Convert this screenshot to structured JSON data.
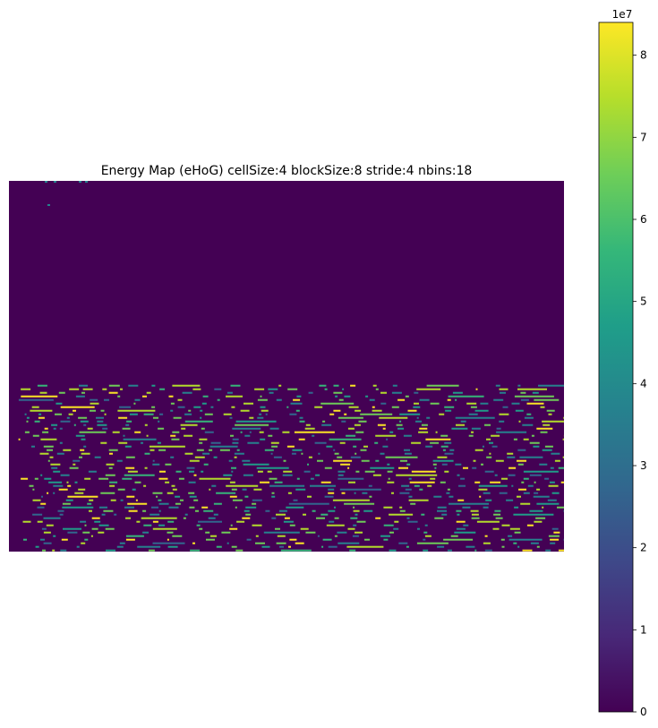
{
  "chart_data": {
    "type": "heatmap",
    "title": "Energy Map (eHoG) cellSize:4 blockSize:8 stride:4 nbins:18",
    "xlabel": "",
    "ylabel": "",
    "colormap": "viridis",
    "background_value": 0,
    "active_region_description_rows": [
      0.55,
      1.0
    ],
    "colorbar": {
      "min": 0,
      "max": 84000000,
      "ticks": [
        0,
        1,
        2,
        3,
        4,
        5,
        6,
        7,
        8
      ],
      "tick_labels": [
        "0",
        "1",
        "2",
        "3",
        "4",
        "5",
        "6",
        "7",
        "8"
      ],
      "exponent_label": "1e7"
    },
    "colors": {
      "v0": "#440154",
      "v1": "#482878",
      "v2": "#3e4989",
      "v3": "#31688e",
      "v4": "#26828e",
      "v5": "#1f9e89",
      "v6": "#35b779",
      "v7": "#6ece58",
      "v8": "#b5de2b",
      "v9": "#fde725"
    }
  }
}
